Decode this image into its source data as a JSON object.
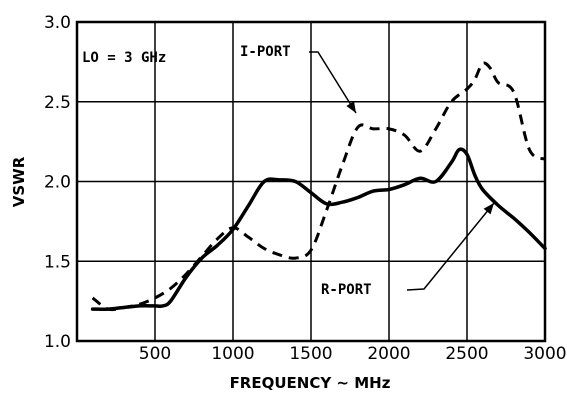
{
  "chart_data": {
    "type": "line",
    "title": "",
    "xlabel": "FREQUENCY ~ MHz",
    "ylabel": "VSWR",
    "xlim": [
      0,
      3000
    ],
    "ylim": [
      1.0,
      3.0
    ],
    "grid": true,
    "x_ticks": [
      {
        "value": 500,
        "label": "500"
      },
      {
        "value": 1000,
        "label": "1000"
      },
      {
        "value": 1500,
        "label": "1500"
      },
      {
        "value": 2000,
        "label": "2000"
      },
      {
        "value": 2500,
        "label": "2500"
      },
      {
        "value": 3000,
        "label": "3000"
      }
    ],
    "y_ticks": [
      {
        "value": 1.0,
        "label": "1.0"
      },
      {
        "value": 1.5,
        "label": "1.5"
      },
      {
        "value": 2.0,
        "label": "2.0"
      },
      {
        "value": 2.5,
        "label": "2.5"
      },
      {
        "value": 3.0,
        "label": "3.0"
      }
    ],
    "annotations": {
      "condition": "LO = 3 GHz",
      "i_port": "I-PORT",
      "r_port": "R-PORT"
    },
    "series": [
      {
        "name": "I-PORT",
        "style": "dashed",
        "x": [
          100,
          200,
          300,
          400,
          500,
          600,
          700,
          800,
          900,
          1000,
          1100,
          1200,
          1300,
          1400,
          1500,
          1600,
          1700,
          1800,
          1900,
          2000,
          2100,
          2200,
          2300,
          2400,
          2500,
          2550,
          2600,
          2650,
          2700,
          2800,
          2900,
          3000
        ],
        "values": [
          1.27,
          1.2,
          1.21,
          1.23,
          1.27,
          1.33,
          1.42,
          1.53,
          1.64,
          1.71,
          1.65,
          1.58,
          1.54,
          1.52,
          1.57,
          1.82,
          2.1,
          2.34,
          2.33,
          2.33,
          2.29,
          2.19,
          2.33,
          2.5,
          2.58,
          2.64,
          2.74,
          2.71,
          2.62,
          2.56,
          2.2,
          2.14
        ]
      },
      {
        "name": "R-PORT",
        "style": "solid",
        "x": [
          100,
          200,
          300,
          400,
          500,
          550,
          600,
          700,
          800,
          900,
          1000,
          1100,
          1200,
          1300,
          1400,
          1500,
          1600,
          1700,
          1800,
          1900,
          2000,
          2100,
          2200,
          2300,
          2400,
          2450,
          2500,
          2550,
          2600,
          2700,
          2800,
          2900,
          3000
        ],
        "values": [
          1.2,
          1.2,
          1.21,
          1.22,
          1.22,
          1.22,
          1.25,
          1.4,
          1.52,
          1.6,
          1.7,
          1.85,
          2.0,
          2.01,
          2.0,
          1.93,
          1.86,
          1.87,
          1.9,
          1.94,
          1.95,
          1.98,
          2.02,
          2.0,
          2.12,
          2.2,
          2.17,
          2.04,
          1.95,
          1.85,
          1.77,
          1.68,
          1.58
        ]
      }
    ]
  }
}
